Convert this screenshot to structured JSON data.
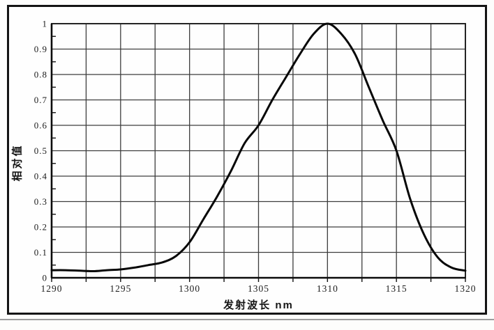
{
  "chart_data": {
    "type": "line",
    "title": "",
    "xlabel": "发射波长 nm",
    "ylabel": "相对值",
    "xlim": [
      1290,
      1320
    ],
    "ylim": [
      0,
      1
    ],
    "grid": true,
    "legend": null,
    "x_gridline_step": 2.5,
    "y_gridline_step": 0.1,
    "y_minor_tick_step": 0.05,
    "x_ticks": {
      "values": [
        1290,
        1295,
        1300,
        1305,
        1310,
        1315,
        1320
      ],
      "labels": [
        "1290",
        "1295",
        "1300",
        "1305",
        "1310",
        "1315",
        "1320"
      ]
    },
    "y_ticks": {
      "values": [
        0,
        0.1,
        0.2,
        0.3,
        0.4,
        0.5,
        0.6,
        0.7,
        0.8,
        0.9,
        1
      ],
      "labels": [
        "0",
        "0.1",
        "0.2",
        "0.3",
        "0.4",
        "0.5",
        "0.6",
        "0.7",
        "0.8",
        "0.9",
        "1"
      ]
    },
    "x": [
      1290,
      1291,
      1292,
      1293,
      1294,
      1295,
      1296,
      1297,
      1298,
      1299,
      1300,
      1301,
      1302,
      1303,
      1304,
      1305,
      1306,
      1307,
      1308,
      1309,
      1310,
      1311,
      1312,
      1313,
      1314,
      1315,
      1316,
      1317,
      1318,
      1319,
      1320
    ],
    "y": [
      0.03,
      0.03,
      0.028,
      0.026,
      0.03,
      0.033,
      0.04,
      0.05,
      0.06,
      0.085,
      0.14,
      0.23,
      0.32,
      0.42,
      0.53,
      0.6,
      0.7,
      0.79,
      0.88,
      0.96,
      1.0,
      0.96,
      0.88,
      0.75,
      0.62,
      0.5,
      0.31,
      0.17,
      0.08,
      0.04,
      0.028
    ]
  },
  "style": {
    "curve_color": "#070707",
    "grid_color": "#3d3d3d",
    "plot_border_color": "#242424",
    "axis_color": "#0b0b0b",
    "tick_color": "#111111",
    "text_color": "#1b1b1b",
    "frame_border_color": "#141414",
    "background": "#fdfdfc",
    "shadow_rule_color": "#9d9d9d"
  }
}
